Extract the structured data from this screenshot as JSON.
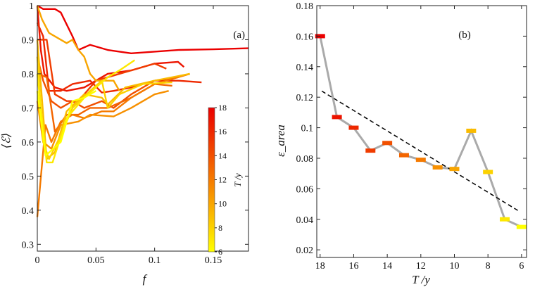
{
  "chart_data": [
    {
      "type": "line",
      "panel_label": "(a)",
      "xlabel": "f",
      "ylabel": "⟨ℰ⟩",
      "xlim": [
        0,
        0.18
      ],
      "ylim": [
        0.28,
        1.0
      ],
      "xticks": [
        "0",
        "0.05",
        "0.1",
        "0.15"
      ],
      "yticks": [
        "0.3",
        "0.4",
        "0.5",
        "0.6",
        "0.7",
        "0.8",
        "0.9",
        "1"
      ],
      "grid": false,
      "colorbar": {
        "label": "T /y",
        "range": [
          6,
          18
        ],
        "ticks": [
          "6",
          "8",
          "10",
          "12",
          "14",
          "16",
          "18"
        ],
        "colors": [
          "#ffff00",
          "#ff9900",
          "#e81010"
        ]
      },
      "series": [
        {
          "T": 18,
          "x": [
            0,
            0.005,
            0.015,
            0.02,
            0.03,
            0.035,
            0.045,
            0.06,
            0.08,
            0.1,
            0.12,
            0.15,
            0.18
          ],
          "y": [
            1,
            0.99,
            0.99,
            0.98,
            0.91,
            0.87,
            0.885,
            0.87,
            0.86,
            0.865,
            0.87,
            0.872,
            0.875
          ]
        },
        {
          "T": 17,
          "x": [
            0,
            0.003,
            0.006,
            0.015,
            0.025,
            0.04,
            0.06,
            0.08,
            0.1,
            0.12,
            0.125
          ],
          "y": [
            1,
            0.87,
            0.8,
            0.76,
            0.75,
            0.76,
            0.8,
            0.81,
            0.83,
            0.835,
            0.82
          ]
        },
        {
          "T": 16,
          "x": [
            0,
            0.005,
            0.01,
            0.02,
            0.03,
            0.045,
            0.055,
            0.065,
            0.08,
            0.1,
            0.12,
            0.14
          ],
          "y": [
            0.95,
            0.91,
            0.75,
            0.75,
            0.77,
            0.78,
            0.745,
            0.75,
            0.76,
            0.78,
            0.78,
            0.775
          ]
        },
        {
          "T": 15,
          "x": [
            0,
            0.008,
            0.015,
            0.025,
            0.035,
            0.05,
            0.06,
            0.08,
            0.1,
            0.11
          ],
          "y": [
            0.9,
            0.9,
            0.74,
            0.72,
            0.72,
            0.78,
            0.79,
            0.81,
            0.83,
            0.815
          ]
        },
        {
          "T": 14,
          "x": [
            0,
            0.005,
            0.012,
            0.02,
            0.03,
            0.04,
            0.055,
            0.065,
            0.08,
            0.1,
            0.12
          ],
          "y": [
            0.85,
            0.78,
            0.72,
            0.7,
            0.72,
            0.7,
            0.72,
            0.7,
            0.74,
            0.78,
            0.79
          ]
        },
        {
          "T": 13,
          "x": [
            0,
            0.008,
            0.015,
            0.025,
            0.035,
            0.045,
            0.06,
            0.08,
            0.1,
            0.115
          ],
          "y": [
            0.8,
            0.79,
            0.63,
            0.68,
            0.68,
            0.7,
            0.7,
            0.73,
            0.77,
            0.765
          ]
        },
        {
          "T": 12,
          "x": [
            0,
            0.007,
            0.012,
            0.02,
            0.03,
            0.04,
            0.055,
            0.065,
            0.08,
            0.1,
            0.13
          ],
          "y": [
            0.38,
            0.65,
            0.6,
            0.66,
            0.68,
            0.67,
            0.69,
            0.69,
            0.73,
            0.77,
            0.8
          ]
        },
        {
          "T": 11,
          "x": [
            0,
            0.005,
            0.012,
            0.02,
            0.035,
            0.045,
            0.065,
            0.08,
            0.1,
            0.112
          ],
          "y": [
            0.72,
            0.6,
            0.58,
            0.65,
            0.66,
            0.68,
            0.675,
            0.7,
            0.74,
            0.75
          ]
        },
        {
          "T": 10,
          "x": [
            0,
            0.004,
            0.01,
            0.025,
            0.03,
            0.035,
            0.04,
            0.045,
            0.05,
            0.065,
            0.07
          ],
          "y": [
            1,
            0.96,
            0.92,
            0.89,
            0.9,
            0.87,
            0.85,
            0.8,
            0.78,
            0.78,
            0.75
          ]
        },
        {
          "T": 9,
          "x": [
            0,
            0.008,
            0.015,
            0.025,
            0.04,
            0.055,
            0.06,
            0.075,
            0.1,
            0.13
          ],
          "y": [
            0.9,
            0.55,
            0.57,
            0.69,
            0.74,
            0.73,
            0.71,
            0.76,
            0.78,
            0.8
          ]
        },
        {
          "T": 8,
          "x": [
            0,
            0.005,
            0.01,
            0.02,
            0.03,
            0.045,
            0.055,
            0.06,
            0.07,
            0.09,
            0.115
          ],
          "y": [
            0.85,
            0.6,
            0.55,
            0.62,
            0.7,
            0.75,
            0.78,
            0.7,
            0.74,
            0.77,
            0.775
          ]
        },
        {
          "T": 7,
          "x": [
            0,
            0.008,
            0.013,
            0.025,
            0.04,
            0.06,
            0.07,
            0.083
          ],
          "y": [
            0.8,
            0.54,
            0.54,
            0.67,
            0.73,
            0.79,
            0.81,
            0.84
          ]
        },
        {
          "T": 6,
          "x": [
            0,
            0.007,
            0.02,
            0.03,
            0.04,
            0.05
          ],
          "y": [
            0.75,
            0.56,
            0.6,
            0.72,
            0.73,
            0.75
          ]
        }
      ]
    },
    {
      "type": "line",
      "panel_label": "(b)",
      "xlabel": "T /y",
      "ylabel": "ε_area",
      "xlim": [
        18.2,
        5.7
      ],
      "ylim": [
        0.015,
        0.18
      ],
      "x_reversed": true,
      "xticks": [
        "18",
        "16",
        "14",
        "12",
        "10",
        "8",
        "6"
      ],
      "yticks": [
        "0.02",
        "0.04",
        "0.06",
        "0.08",
        "0.1",
        "0.12",
        "0.14",
        "0.16",
        "0.18"
      ],
      "grid": false,
      "series": [
        {
          "x": [
            18,
            17,
            16,
            15,
            14,
            13,
            12,
            11,
            10,
            9,
            8,
            7,
            6
          ],
          "y": [
            0.16,
            0.107,
            0.1,
            0.085,
            0.09,
            0.082,
            0.079,
            0.074,
            0.073,
            0.098,
            0.071,
            0.04,
            0.035
          ],
          "line_color": "#aaaaaa",
          "marker": "colored-bar"
        }
      ],
      "fit_line": {
        "x": [
          17.9,
          6.1
        ],
        "y": [
          0.124,
          0.045
        ],
        "style": "dashed",
        "color": "#000000"
      }
    }
  ]
}
